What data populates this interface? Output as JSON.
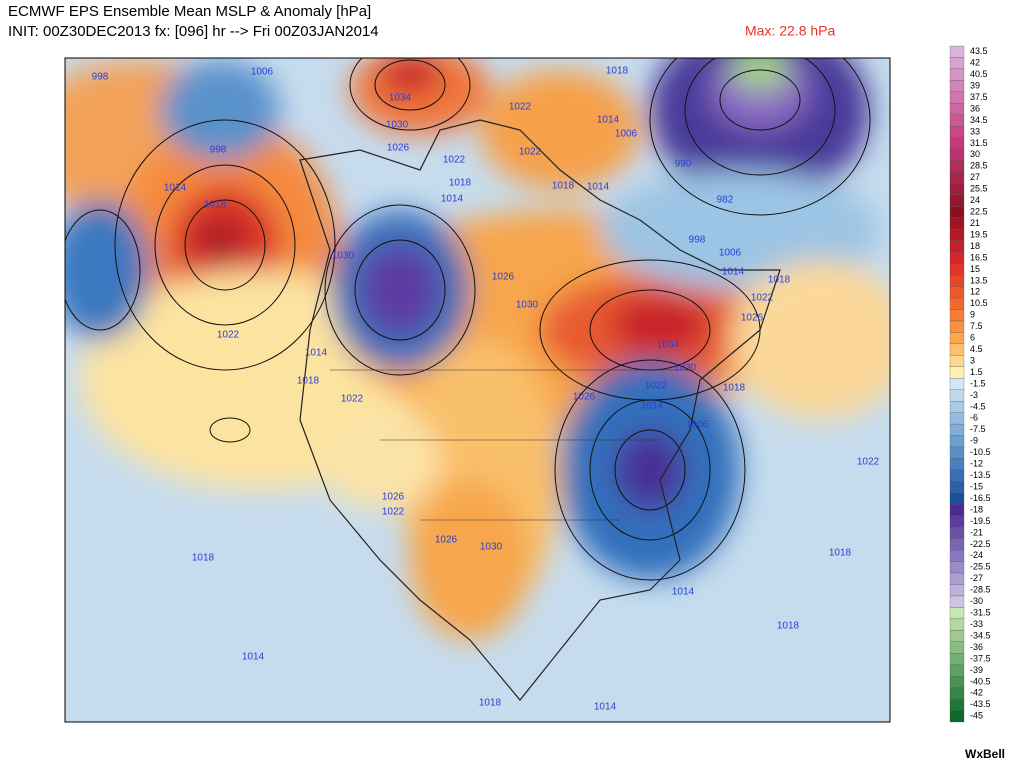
{
  "header": {
    "title": "ECMWF EPS Ensemble Mean MSLP & Anomaly [hPa]",
    "subtitle": "INIT: 00Z30DEC2013 fx: [096] hr --> Fri 00Z03JAN2014",
    "max_label": "Max: 22.8 hPa"
  },
  "colorbar": [
    "43.5",
    "42",
    "40.5",
    "39",
    "37.5",
    "36",
    "34.5",
    "33",
    "31.5",
    "30",
    "28.5",
    "27",
    "25.5",
    "24",
    "22.5",
    "21",
    "19.5",
    "18",
    "16.5",
    "15",
    "13.5",
    "12",
    "10.5",
    "9",
    "7.5",
    "6",
    "4.5",
    "3",
    "1.5",
    "-1.5",
    "-3",
    "-4.5",
    "-6",
    "-7.5",
    "-9",
    "-10.5",
    "-12",
    "-13.5",
    "-15",
    "-16.5",
    "-18",
    "-19.5",
    "-21",
    "-22.5",
    "-24",
    "-25.5",
    "-27",
    "-28.5",
    "-30",
    "-31.5",
    "-33",
    "-34.5",
    "-36",
    "-37.5",
    "-39",
    "-40.5",
    "-42",
    "-43.5",
    "-45"
  ],
  "isobar_labels": [
    "998",
    "1006",
    "998",
    "1014",
    "1018",
    "1022",
    "1018",
    "1014",
    "1034",
    "1030",
    "1026",
    "1022",
    "1018",
    "1014",
    "1022",
    "1022",
    "1018",
    "1014",
    "1018",
    "1014",
    "1006",
    "990",
    "982",
    "998",
    "1006",
    "1014",
    "1018",
    "1022",
    "1026",
    "1030",
    "1026",
    "1030",
    "1034",
    "1030",
    "1022",
    "1018",
    "1014",
    "1026",
    "1006",
    "1022",
    "1014",
    "1018",
    "1026",
    "1022",
    "1026",
    "1030",
    "1022",
    "1018",
    "1014",
    "1018",
    "1018",
    "1014"
  ],
  "logo": "WxBell"
}
